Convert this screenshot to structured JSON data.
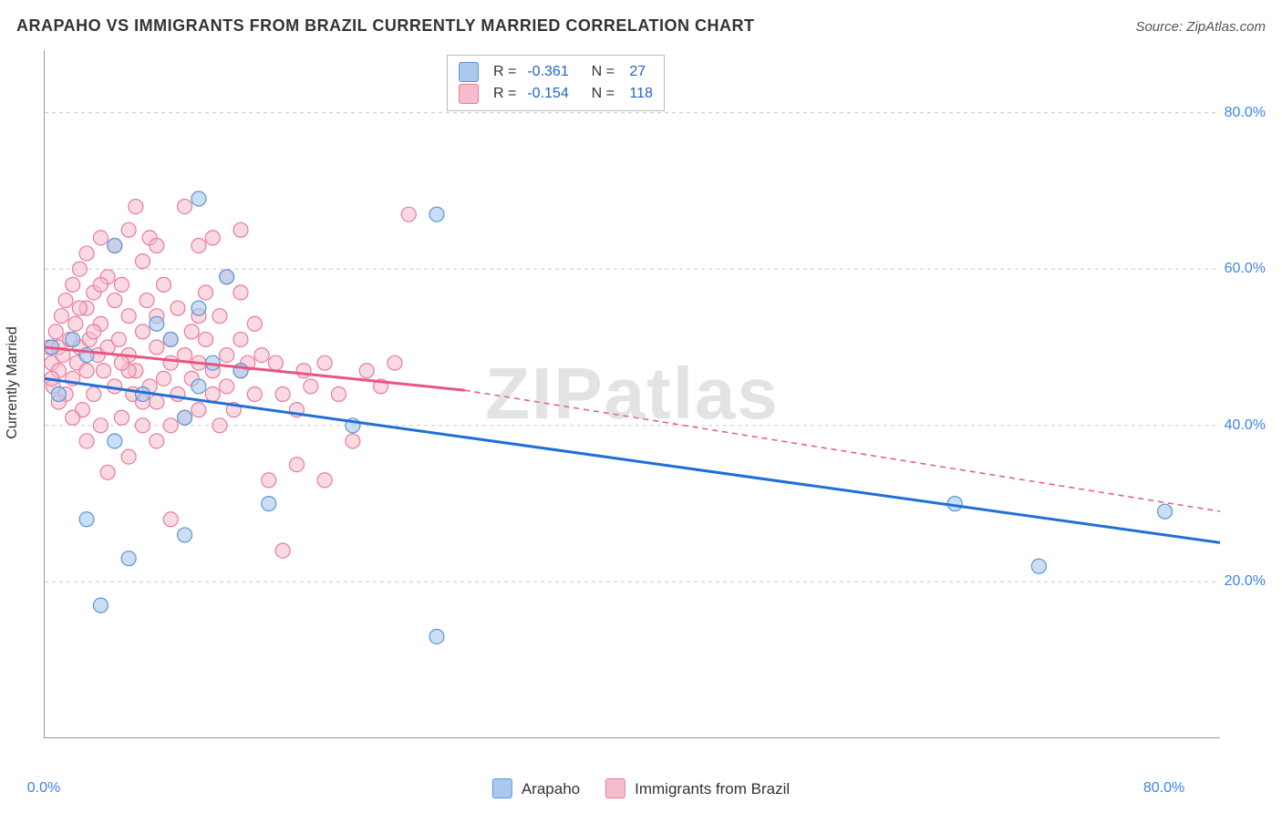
{
  "title": "ARAPAHO VS IMMIGRANTS FROM BRAZIL CURRENTLY MARRIED CORRELATION CHART",
  "source": "Source: ZipAtlas.com",
  "y_axis_label": "Currently Married",
  "watermark_zip": "ZIP",
  "watermark_atlas": "atlas",
  "chart": {
    "type": "scatter",
    "background_color": "#ffffff",
    "grid_color": "#cccccc",
    "axis_color": "#999999",
    "xlim": [
      0,
      84
    ],
    "ylim": [
      0,
      88
    ],
    "y_ticks": [
      20,
      40,
      60,
      80
    ],
    "y_tick_labels": [
      "20.0%",
      "40.0%",
      "60.0%",
      "80.0%"
    ],
    "x_ticks": [
      10,
      20,
      30,
      40,
      50,
      60,
      70,
      80
    ],
    "x_min_label": "0.0%",
    "x_max_label": "80.0%",
    "tick_label_color": "#3b82f6",
    "tick_label_fontsize": 16,
    "marker_radius": 8,
    "marker_stroke_width": 1.2,
    "series": {
      "arapaho": {
        "label": "Arapaho",
        "fill_color": "#a9c9ef",
        "stroke_color": "#5c95d6",
        "fill_opacity": 0.62,
        "trend_color": "#1f6fd8",
        "trend_width": 3,
        "R": "-0.361",
        "N": "27",
        "trend_start": {
          "x": 0,
          "y": 46
        },
        "trend_end": {
          "x": 84,
          "y": 25
        },
        "points": [
          {
            "x": 1,
            "y": 44
          },
          {
            "x": 2,
            "y": 51
          },
          {
            "x": 3,
            "y": 28
          },
          {
            "x": 4,
            "y": 17
          },
          {
            "x": 5,
            "y": 63
          },
          {
            "x": 5,
            "y": 38
          },
          {
            "x": 6,
            "y": 23
          },
          {
            "x": 8,
            "y": 53
          },
          {
            "x": 10,
            "y": 26
          },
          {
            "x": 10,
            "y": 41
          },
          {
            "x": 11,
            "y": 45
          },
          {
            "x": 11,
            "y": 69
          },
          {
            "x": 12,
            "y": 48
          },
          {
            "x": 13,
            "y": 59
          },
          {
            "x": 14,
            "y": 47
          },
          {
            "x": 16,
            "y": 30
          },
          {
            "x": 22,
            "y": 40
          },
          {
            "x": 28,
            "y": 67
          },
          {
            "x": 28,
            "y": 13
          },
          {
            "x": 65,
            "y": 30
          },
          {
            "x": 71,
            "y": 22
          },
          {
            "x": 80,
            "y": 29
          },
          {
            "x": 3,
            "y": 49
          },
          {
            "x": 7,
            "y": 44
          },
          {
            "x": 9,
            "y": 51
          },
          {
            "x": 11,
            "y": 55
          },
          {
            "x": 0.5,
            "y": 50
          }
        ]
      },
      "brazil": {
        "label": "Immigrants from Brazil",
        "fill_color": "#f6bccb",
        "stroke_color": "#ea7a9b",
        "fill_opacity": 0.55,
        "trend_color_solid": "#e9557e",
        "trend_color_dash": "#e9557e",
        "trend_width": 3,
        "R": "-0.154",
        "N": "118",
        "trend_solid_start": {
          "x": 0,
          "y": 50
        },
        "trend_solid_end": {
          "x": 30,
          "y": 44.5
        },
        "trend_dash_start": {
          "x": 30,
          "y": 44.5
        },
        "trend_dash_end": {
          "x": 84,
          "y": 29
        },
        "points": [
          {
            "x": 0.3,
            "y": 50
          },
          {
            "x": 0.5,
            "y": 48
          },
          {
            "x": 0.6,
            "y": 45
          },
          {
            "x": 0.8,
            "y": 52
          },
          {
            "x": 1,
            "y": 47
          },
          {
            "x": 1,
            "y": 50
          },
          {
            "x": 1.2,
            "y": 54
          },
          {
            "x": 1.3,
            "y": 49
          },
          {
            "x": 1.5,
            "y": 44
          },
          {
            "x": 1.5,
            "y": 56
          },
          {
            "x": 1.8,
            "y": 51
          },
          {
            "x": 2,
            "y": 58
          },
          {
            "x": 2,
            "y": 46
          },
          {
            "x": 2.2,
            "y": 53
          },
          {
            "x": 2.3,
            "y": 48
          },
          {
            "x": 2.5,
            "y": 50
          },
          {
            "x": 2.5,
            "y": 60
          },
          {
            "x": 2.7,
            "y": 42
          },
          {
            "x": 3,
            "y": 55
          },
          {
            "x": 3,
            "y": 47
          },
          {
            "x": 3,
            "y": 62
          },
          {
            "x": 3.2,
            "y": 51
          },
          {
            "x": 3.5,
            "y": 57
          },
          {
            "x": 3.5,
            "y": 44
          },
          {
            "x": 3.8,
            "y": 49
          },
          {
            "x": 4,
            "y": 64
          },
          {
            "x": 4,
            "y": 53
          },
          {
            "x": 4,
            "y": 40
          },
          {
            "x": 4.2,
            "y": 47
          },
          {
            "x": 4.5,
            "y": 59
          },
          {
            "x": 4.5,
            "y": 34
          },
          {
            "x": 4.5,
            "y": 50
          },
          {
            "x": 5,
            "y": 56
          },
          {
            "x": 5,
            "y": 45
          },
          {
            "x": 5,
            "y": 63
          },
          {
            "x": 5.3,
            "y": 51
          },
          {
            "x": 5.5,
            "y": 41
          },
          {
            "x": 5.5,
            "y": 58
          },
          {
            "x": 6,
            "y": 49
          },
          {
            "x": 6,
            "y": 54
          },
          {
            "x": 6,
            "y": 36
          },
          {
            "x": 6,
            "y": 65
          },
          {
            "x": 6.3,
            "y": 44
          },
          {
            "x": 6.5,
            "y": 68
          },
          {
            "x": 6.5,
            "y": 47
          },
          {
            "x": 7,
            "y": 52
          },
          {
            "x": 7,
            "y": 61
          },
          {
            "x": 7,
            "y": 40
          },
          {
            "x": 7.3,
            "y": 56
          },
          {
            "x": 7.5,
            "y": 64
          },
          {
            "x": 7.5,
            "y": 45
          },
          {
            "x": 8,
            "y": 50
          },
          {
            "x": 8,
            "y": 54
          },
          {
            "x": 8,
            "y": 43
          },
          {
            "x": 8,
            "y": 63
          },
          {
            "x": 8.5,
            "y": 58
          },
          {
            "x": 8.5,
            "y": 46
          },
          {
            "x": 9,
            "y": 28
          },
          {
            "x": 9,
            "y": 51
          },
          {
            "x": 9,
            "y": 48
          },
          {
            "x": 9.5,
            "y": 44
          },
          {
            "x": 9.5,
            "y": 55
          },
          {
            "x": 10,
            "y": 49
          },
          {
            "x": 10,
            "y": 41
          },
          {
            "x": 10,
            "y": 68
          },
          {
            "x": 10.5,
            "y": 46
          },
          {
            "x": 10.5,
            "y": 52
          },
          {
            "x": 11,
            "y": 63
          },
          {
            "x": 11,
            "y": 42
          },
          {
            "x": 11,
            "y": 48
          },
          {
            "x": 11.5,
            "y": 51
          },
          {
            "x": 11.5,
            "y": 57
          },
          {
            "x": 12,
            "y": 44
          },
          {
            "x": 12,
            "y": 64
          },
          {
            "x": 12,
            "y": 47
          },
          {
            "x": 12.5,
            "y": 54
          },
          {
            "x": 12.5,
            "y": 40
          },
          {
            "x": 13,
            "y": 49
          },
          {
            "x": 13,
            "y": 45
          },
          {
            "x": 13,
            "y": 59
          },
          {
            "x": 13.5,
            "y": 42
          },
          {
            "x": 14,
            "y": 51
          },
          {
            "x": 14,
            "y": 47
          },
          {
            "x": 14,
            "y": 57
          },
          {
            "x": 14.5,
            "y": 48
          },
          {
            "x": 15,
            "y": 44
          },
          {
            "x": 15,
            "y": 53
          },
          {
            "x": 15.5,
            "y": 49
          },
          {
            "x": 16,
            "y": 33
          },
          {
            "x": 16.5,
            "y": 48
          },
          {
            "x": 17,
            "y": 44
          },
          {
            "x": 17,
            "y": 24
          },
          {
            "x": 18,
            "y": 35
          },
          {
            "x": 18,
            "y": 42
          },
          {
            "x": 18.5,
            "y": 47
          },
          {
            "x": 19,
            "y": 45
          },
          {
            "x": 20,
            "y": 33
          },
          {
            "x": 20,
            "y": 48
          },
          {
            "x": 21,
            "y": 44
          },
          {
            "x": 22,
            "y": 38
          },
          {
            "x": 23,
            "y": 47
          },
          {
            "x": 24,
            "y": 45
          },
          {
            "x": 25,
            "y": 48
          },
          {
            "x": 26,
            "y": 67
          },
          {
            "x": 14,
            "y": 65
          },
          {
            "x": 4,
            "y": 58
          },
          {
            "x": 2,
            "y": 41
          },
          {
            "x": 1,
            "y": 43
          },
          {
            "x": 0.5,
            "y": 46
          },
          {
            "x": 3,
            "y": 38
          },
          {
            "x": 6,
            "y": 47
          },
          {
            "x": 7,
            "y": 43
          },
          {
            "x": 8,
            "y": 38
          },
          {
            "x": 9,
            "y": 40
          },
          {
            "x": 2.5,
            "y": 55
          },
          {
            "x": 3.5,
            "y": 52
          },
          {
            "x": 5.5,
            "y": 48
          },
          {
            "x": 11,
            "y": 54
          }
        ]
      }
    }
  },
  "legend_top": {
    "rows": [
      {
        "swatch_fill": "#a9c9ef",
        "swatch_stroke": "#5c95d6",
        "R_label": "R =",
        "R_val": "-0.361",
        "N_label": "N =",
        "N_val": "27"
      },
      {
        "swatch_fill": "#f6bccb",
        "swatch_stroke": "#ea7a9b",
        "R_label": "R =",
        "R_val": "-0.154",
        "N_label": "N =",
        "N_val": "118"
      }
    ]
  },
  "legend_bottom": {
    "items": [
      {
        "swatch_fill": "#a9c9ef",
        "swatch_stroke": "#5c95d6",
        "label": "Arapaho"
      },
      {
        "swatch_fill": "#f6bccb",
        "swatch_stroke": "#ea7a9b",
        "label": "Immigrants from Brazil"
      }
    ]
  }
}
